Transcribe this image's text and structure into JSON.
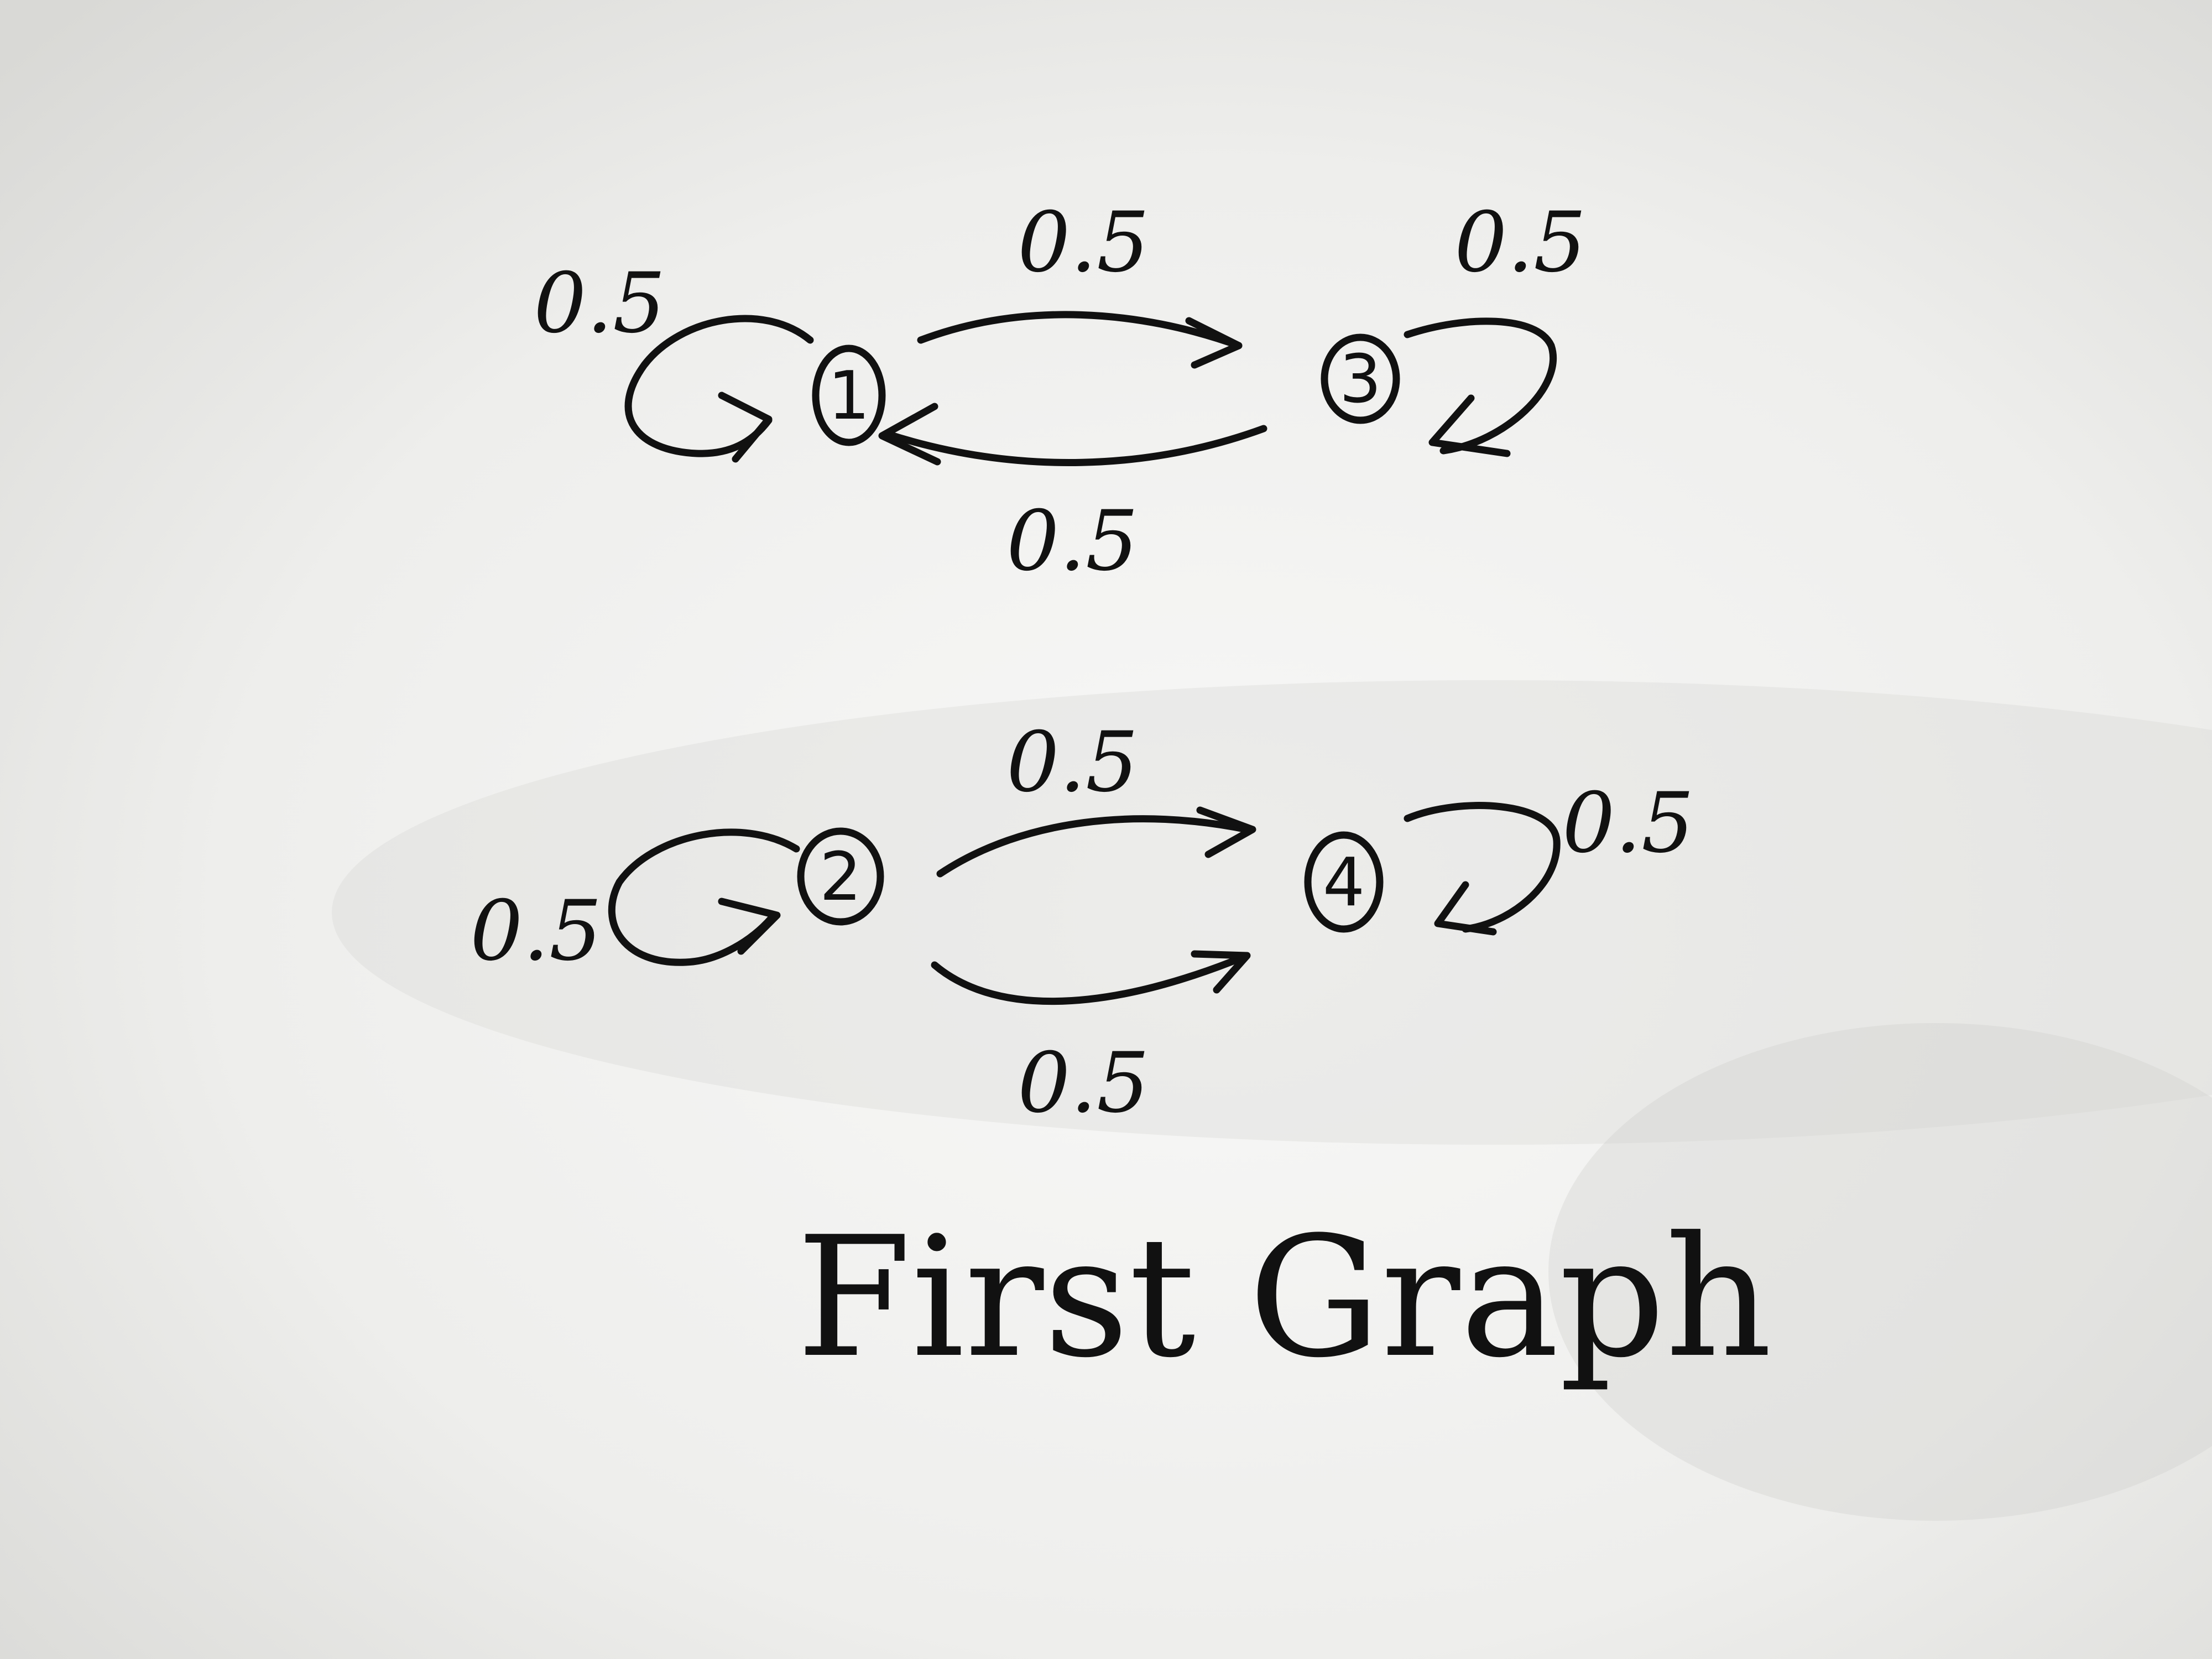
{
  "palette": {
    "ink": "#111111",
    "paper": "#f4f4f2"
  },
  "graph_top": {
    "nodes": [
      {
        "id": "1",
        "label": "1"
      },
      {
        "id": "3",
        "label": "3"
      }
    ],
    "edges": [
      {
        "from": "1",
        "to": "1",
        "weight": "0.5"
      },
      {
        "from": "1",
        "to": "3",
        "weight": "0.5"
      },
      {
        "from": "3",
        "to": "3",
        "weight": "0.5"
      },
      {
        "from": "3",
        "to": "1",
        "weight": "0.5"
      }
    ]
  },
  "graph_bottom": {
    "nodes": [
      {
        "id": "2",
        "label": "2"
      },
      {
        "id": "4",
        "label": "4"
      }
    ],
    "edges": [
      {
        "from": "2",
        "to": "2",
        "weight": "0.5"
      },
      {
        "from": "2",
        "to": "4",
        "weight": "0.5"
      },
      {
        "from": "4",
        "to": "4",
        "weight": "0.5"
      },
      {
        "from": "2",
        "to": "4",
        "weight": "0.5"
      }
    ]
  },
  "caption": "First Graph"
}
